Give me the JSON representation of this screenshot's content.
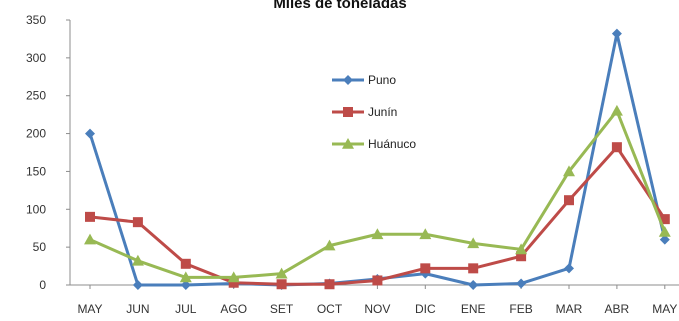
{
  "chart_data": {
    "type": "line",
    "title": "Miles de toneladas",
    "xlabel": "",
    "ylabel": "",
    "categories": [
      "MAY",
      "JUN",
      "JUL",
      "AGO",
      "SET",
      "OCT",
      "NOV",
      "DIC",
      "ENE",
      "FEB",
      "MAR",
      "ABR",
      "MAY"
    ],
    "ylim": [
      0,
      350
    ],
    "yticks": [
      0,
      50,
      100,
      150,
      200,
      250,
      300,
      350
    ],
    "grid": false,
    "legend_position": "center-top",
    "series": [
      {
        "name": "Puno",
        "color": "#4a7ebb",
        "marker": "diamond",
        "values": [
          200,
          0,
          0,
          2,
          0,
          2,
          8,
          15,
          0,
          2,
          22,
          332,
          60
        ]
      },
      {
        "name": "Junín",
        "color": "#be4b48",
        "marker": "square",
        "values": [
          90,
          83,
          28,
          3,
          1,
          1,
          6,
          22,
          22,
          38,
          112,
          182,
          87
        ]
      },
      {
        "name": "Huánuco",
        "color": "#98b954",
        "marker": "triangle",
        "values": [
          60,
          32,
          10,
          10,
          15,
          52,
          67,
          67,
          55,
          47,
          150,
          230,
          70
        ]
      }
    ]
  }
}
